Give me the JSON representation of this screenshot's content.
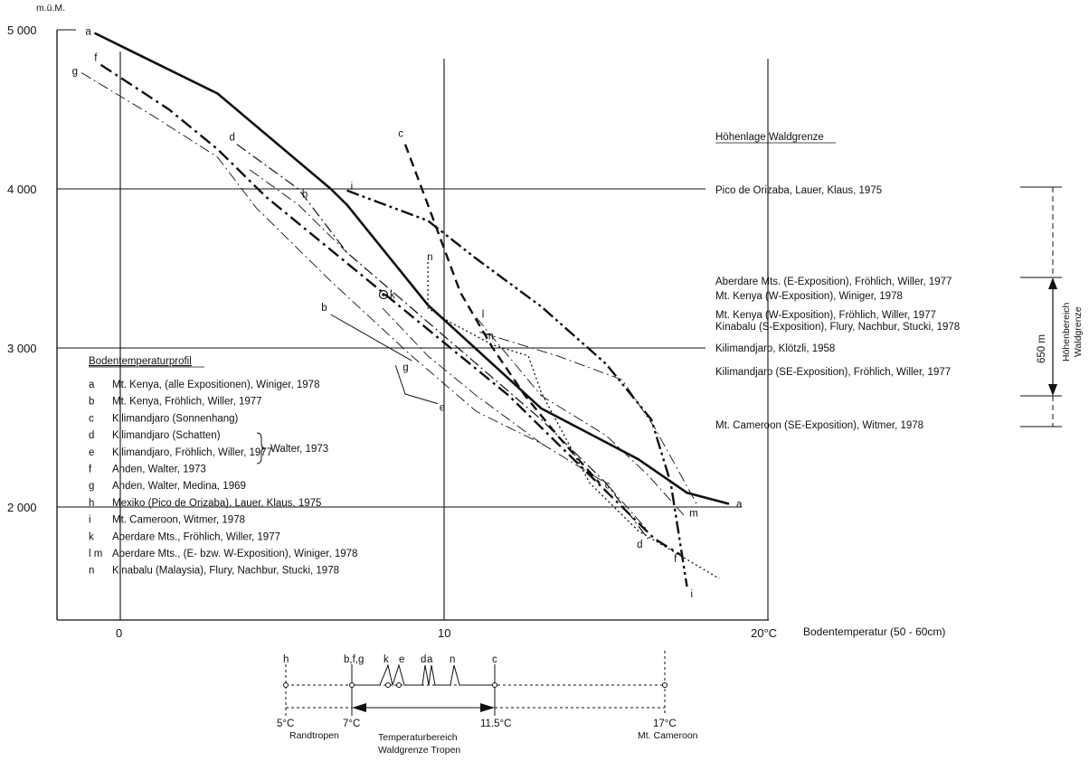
{
  "chart_data": {
    "type": "line",
    "xlabel": "Bodentemperatur (50 - 60cm)",
    "ylabel": "m.ü.M.",
    "x_ticks": [
      "0",
      "10",
      "20°C"
    ],
    "y_ticks": [
      "5 000",
      "4 000",
      "3 000",
      "2 000"
    ],
    "xlim": [
      -2,
      20
    ],
    "ylim": [
      1300,
      5000
    ],
    "grid": "partial",
    "series": [
      {
        "id": "a",
        "style": "heavy",
        "x": [
          -0.8,
          3,
          6.5,
          7,
          9.5,
          13,
          16,
          17.5,
          18.8
        ],
        "y": [
          4980,
          4600,
          4000,
          3900,
          3270,
          2620,
          2300,
          2090,
          2020
        ]
      },
      {
        "id": "b",
        "style": "thin",
        "x": [
          6.5,
          9
        ],
        "y": [
          3210,
          2920
        ]
      },
      {
        "id": "c",
        "style": "dashed",
        "x": [
          8.8,
          9.5,
          10.5,
          11.5,
          12.5,
          13.5,
          14.8
        ],
        "y": [
          4280,
          3900,
          3350,
          3000,
          2700,
          2450,
          2150
        ]
      },
      {
        "id": "d",
        "style": "dashdot",
        "x": [
          3.6,
          5.5,
          7,
          9,
          11,
          13,
          15,
          16.3
        ],
        "y": [
          4280,
          4000,
          3600,
          3250,
          2900,
          2550,
          2150,
          1800
        ]
      },
      {
        "id": "e",
        "style": "thin",
        "x": [
          8.5,
          8.8,
          9.8
        ],
        "y": [
          2890,
          2710,
          2650
        ]
      },
      {
        "id": "f",
        "style": "heavy-dashdot",
        "x": [
          -0.6,
          1.5,
          3,
          4.5,
          6,
          7.5,
          9,
          10.5,
          12,
          13.5,
          15,
          16.5,
          17.3
        ],
        "y": [
          4780,
          4500,
          4250,
          3950,
          3700,
          3450,
          3200,
          2950,
          2700,
          2400,
          2100,
          1800,
          1700
        ]
      },
      {
        "id": "g",
        "style": "thin-dashdot",
        "x": [
          -1.2,
          1,
          3,
          4.2,
          6.5,
          9,
          11,
          13,
          15,
          16.3
        ],
        "y": [
          4730,
          4460,
          4200,
          3880,
          3420,
          2950,
          2600,
          2400,
          2150,
          1850
        ]
      },
      {
        "id": "h",
        "style": "thin-dashdot",
        "x": [
          4,
          5.5,
          7
        ],
        "y": [
          4120,
          3900,
          3600
        ]
      },
      {
        "id": "i",
        "style": "heavy-dashdotdot",
        "x": [
          7,
          9.5,
          11,
          13,
          15,
          16.4,
          17,
          17.5
        ],
        "y": [
          3990,
          3800,
          3560,
          3260,
          2900,
          2550,
          2150,
          1500
        ]
      },
      {
        "id": "k",
        "style": "thin-dashdot",
        "x": [
          8.1,
          9.5,
          11,
          13
        ],
        "y": [
          3250,
          2950,
          2700,
          2400
        ]
      },
      {
        "id": "l",
        "style": "thin-dashdot",
        "x": [
          11,
          13,
          15,
          16.3,
          17.4
        ],
        "y": [
          3190,
          2700,
          2450,
          2200,
          1950
        ]
      },
      {
        "id": "m",
        "style": "thin-dashdot",
        "x": [
          11.1,
          13.5,
          15.5,
          16.5,
          17.8
        ],
        "y": [
          3100,
          2950,
          2800,
          2500,
          2020
        ]
      },
      {
        "id": "n",
        "style": "dotted",
        "x": [
          9.5,
          9.5,
          10.2,
          11.5,
          12.6,
          13,
          14.5,
          16,
          18.5
        ],
        "y": [
          3540,
          3250,
          3160,
          3020,
          2950,
          2720,
          2150,
          1850,
          1550
        ]
      }
    ],
    "annotations": {
      "ring_marker_label": "k",
      "temperature_section_label": "Bodentemperaturprofil",
      "treeline_section_label": "Höhenlage Waldgrenze"
    }
  },
  "legend": [
    {
      "key": "a",
      "text": "Mt. Kenya, (alle Expositionen), Winiger, 1978"
    },
    {
      "key": "b",
      "text": "Mt. Kenya, Fröhlich, Willer, 1977"
    },
    {
      "key": "c",
      "text": "Kilimandjaro (Sonnenhang)"
    },
    {
      "key": "d",
      "text": "Kilimandjaro (Schatten)"
    },
    {
      "key": "e",
      "text": "Kilimandjaro, Fröhlich, Willer, 1977"
    },
    {
      "key": "f",
      "text": "Anden, Walter, 1973"
    },
    {
      "key": "g",
      "text": "Anden, Walter, Medina, 1969"
    },
    {
      "key": "h",
      "text": "Mexiko (Pico de Orizaba), Lauer, Klaus, 1975"
    },
    {
      "key": "i",
      "text": "Mt. Cameroon, Witmer, 1978"
    },
    {
      "key": "k",
      "text": "Aberdare Mts., Fröhlich, Willer, 1977"
    },
    {
      "key": "l m",
      "text": "Aberdare Mts., (E- bzw. W-Exposition), Winiger, 1978"
    },
    {
      "key": "n",
      "text": "Kinabalu (Malaysia), Flury, Nachbur, Stucki, 1978"
    }
  ],
  "legend_brace_label": "Walter, 1973",
  "treeline": {
    "title": "Höhenlage Waldgrenze",
    "entries": [
      "Pico de Orizaba, Lauer, Klaus, 1975",
      "Aberdare Mts. (E-Exposition), Fröhlich, Willer, 1977",
      "Mt. Kenya (W-Exposition), Winiger, 1978",
      "Mt. Kenya (W-Exposition), Fröhlich, Willer, 1977",
      "Kinabalu (S-Exposition), Flury, Nachbur, Stucki, 1978",
      "Kilimandjaro, Klötzli, 1958",
      "Kilimandjaro (SE-Exposition), Fröhlich, Willer, 1977",
      "Mt. Cameroon (SE-Exposition), Witmer, 1978"
    ],
    "range_label": "650 m",
    "range_title_1": "Höhenbereich",
    "range_title_2": "Waldgrenze"
  },
  "temp_scale": {
    "top_labels": [
      "h",
      "b,f,g",
      "k",
      "e",
      "d",
      "a",
      "n",
      "c"
    ],
    "values": [
      "5°C",
      "7°C",
      "11.5°C",
      "17°C"
    ],
    "left_caption": "Randtropen",
    "middle_caption_1": "Temperaturbereich",
    "middle_caption_2": "Waldgrenze Tropen",
    "right_caption": "Mt. Cameroon"
  }
}
